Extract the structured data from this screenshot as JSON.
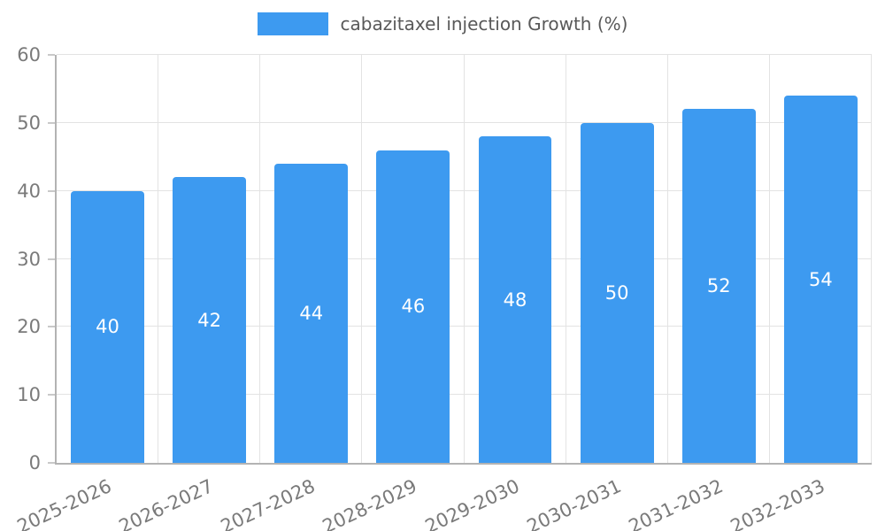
{
  "legend": {
    "label": "cabazitaxel injection Growth (%)",
    "swatch_color": "#3D9AF0"
  },
  "chart_data": {
    "type": "bar",
    "title": "cabazitaxel injection Growth (%)",
    "categories": [
      "2025-2026",
      "2026-2027",
      "2027-2028",
      "2028-2029",
      "2029-2030",
      "2030-2031",
      "2031-2032",
      "2032-2033"
    ],
    "values": [
      40,
      42,
      44,
      46,
      48,
      50,
      52,
      54
    ],
    "xlabel": "",
    "ylabel": "",
    "ylim": [
      0,
      60
    ],
    "yticks": [
      0,
      10,
      20,
      30,
      40,
      50,
      60
    ],
    "grid": true,
    "legend_position": "top",
    "bar_color": "#3D9AF0",
    "value_label_color": "#ffffff",
    "axis_color": "#b3b3b3",
    "gridline_color": "#e3e3e3",
    "tick_text_color": "#7a7a7a"
  }
}
